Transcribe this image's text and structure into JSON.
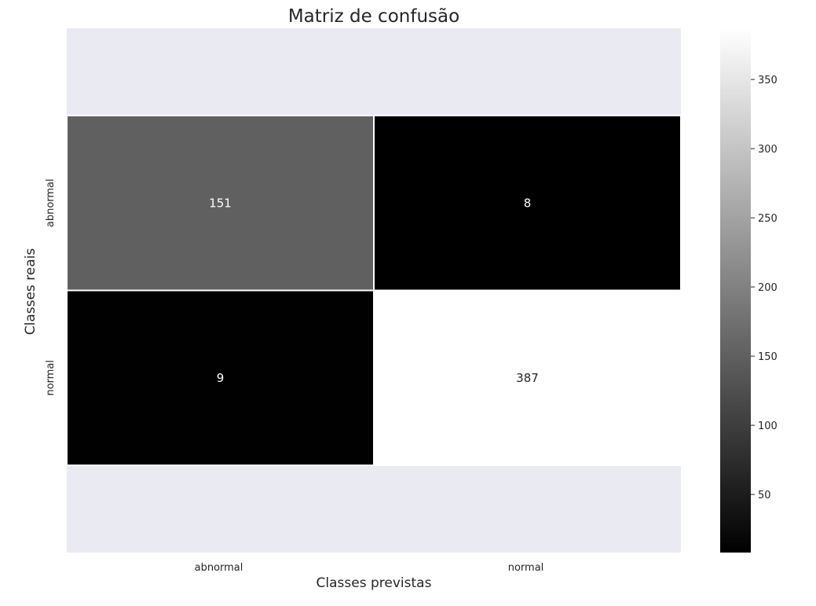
{
  "chart_data": {
    "type": "heatmap",
    "title": "Matriz de confusão",
    "xlabel": "Classes previstas",
    "ylabel": "Classes reais",
    "x_categories": [
      "abnormal",
      "normal"
    ],
    "y_categories": [
      "abnormal",
      "normal"
    ],
    "values": [
      [
        151,
        8
      ],
      [
        9,
        387
      ]
    ],
    "colormap": "gray",
    "color_range": [
      8,
      387
    ],
    "colorbar_ticks": [
      50,
      100,
      150,
      200,
      250,
      300,
      350
    ],
    "grid": false
  },
  "colors": {
    "axes_background": "#eaeaf2",
    "cell_border": "#ffffff",
    "text": "#262626"
  }
}
